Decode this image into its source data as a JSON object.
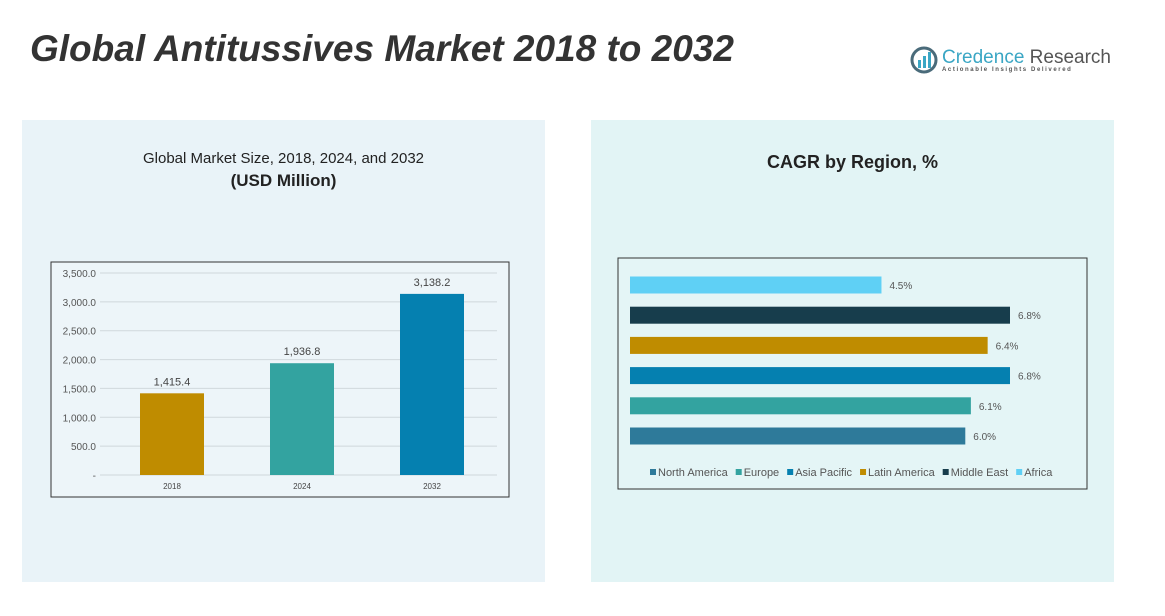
{
  "header": {
    "title": "Global Antitussives Market 2018 to 2032"
  },
  "logo": {
    "name_a": "Credence",
    "name_b": " Research",
    "tagline": "Actionable Insights Delivered"
  },
  "chart_data": [
    {
      "type": "bar",
      "title": "Global Market Size, 2018, 2024, and 2032",
      "subtitle": "(USD Million)",
      "categories": [
        "2018",
        "2024",
        "2032"
      ],
      "values": [
        1415.4,
        1936.8,
        3138.2
      ],
      "labels": [
        "1,415.4",
        "1,936.8",
        "3,138.2"
      ],
      "colors": [
        "#bf8c00",
        "#33a3a0",
        "#0580b0"
      ],
      "ylim": [
        0,
        3500
      ],
      "yticks": [
        "-",
        "500.0",
        "1,000.0",
        "1,500.0",
        "2,000.0",
        "2,500.0",
        "3,000.0",
        "3,500.0"
      ],
      "grid": true
    },
    {
      "type": "bar",
      "orientation": "horizontal",
      "title": "CAGR by Region, %",
      "categories": [
        "North America",
        "Europe",
        "Asia Pacific",
        "Latin America",
        "Middle East",
        "Africa"
      ],
      "values": [
        6.0,
        6.1,
        6.8,
        6.4,
        6.8,
        4.5
      ],
      "labels": [
        "6.0%",
        "6.1%",
        "6.8%",
        "6.4%",
        "6.8%",
        "4.5%"
      ],
      "colors": [
        "#2e7a9a",
        "#33a3a0",
        "#0580b0",
        "#bf8c00",
        "#173d4c",
        "#5fd0f5"
      ],
      "legend": "bottom"
    }
  ]
}
